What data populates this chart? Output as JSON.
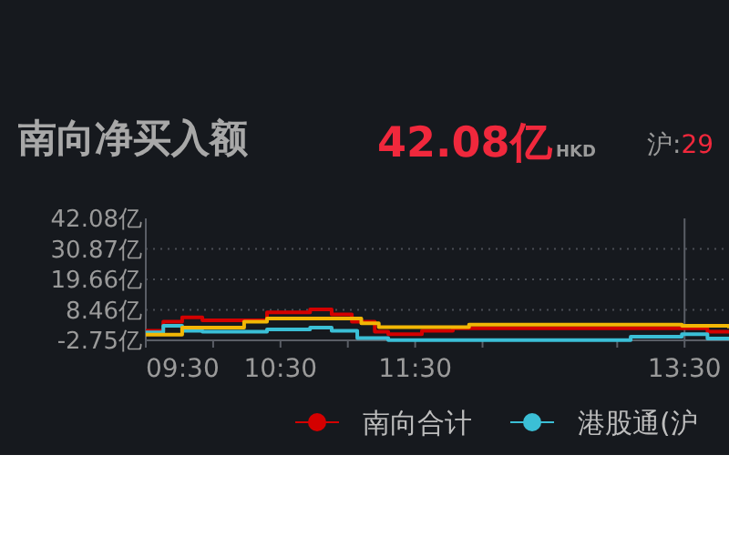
{
  "chart_data": {
    "type": "step",
    "title": "南向净买入额",
    "annotations": [
      "42.08亿",
      "HKD",
      "沪:",
      "29"
    ],
    "xlim": [
      9.5,
      13.83
    ],
    "xticks": [
      {
        "value": 9.5,
        "label": "09:30"
      },
      {
        "value": 10,
        "label": null
      },
      {
        "value": 10.5,
        "label": "10:30"
      },
      {
        "value": 11,
        "label": null
      },
      {
        "value": 11.5,
        "label": "11:30"
      },
      {
        "value": 12,
        "label": null
      },
      {
        "value": 13,
        "label": null
      },
      {
        "value": 13.5,
        "label": "13:30"
      }
    ],
    "ylim": [
      -2.75,
      42.08
    ],
    "yticks": [
      {
        "value": -2.75,
        "label": "-2.75亿"
      },
      {
        "value": 8.46,
        "label": "8.46亿"
      },
      {
        "value": 19.66,
        "label": "19.66亿"
      },
      {
        "value": 30.87,
        "label": "30.87亿"
      },
      {
        "value": 42.08,
        "label": "42.08亿"
      }
    ],
    "grid": "y",
    "legend": "bottom",
    "ref_lines": [
      {
        "axis": "x",
        "value": 13.5,
        "color": "#5a5e66"
      }
    ],
    "series": [
      {
        "name": "南向合计",
        "color": "#d40000",
        "x": [
          9.5,
          9.63,
          9.77,
          9.92,
          10.23,
          10.4,
          10.62,
          10.72,
          10.88,
          11.03,
          11.2,
          11.3,
          11.45,
          11.55,
          11.78,
          13.48,
          13.67,
          13.83
        ],
        "values": [
          0.8,
          4.1,
          5.7,
          4.6,
          4.6,
          7.5,
          7.5,
          8.6,
          6.8,
          4.1,
          0.4,
          -0.5,
          -0.5,
          0.8,
          1.7,
          1.7,
          0.4,
          0.4
        ]
      },
      {
        "name": "港股通(沪",
        "color": "#3bbfd6",
        "x": [
          9.5,
          9.63,
          9.77,
          9.92,
          10.4,
          10.72,
          10.88,
          11.07,
          11.3,
          13,
          13.1,
          13.45,
          13.48,
          13.67,
          13.83
        ],
        "values": [
          0.2,
          2.6,
          0.8,
          0.4,
          1.3,
          1.9,
          0.8,
          -1.9,
          -2.7,
          -2.7,
          -1.4,
          -1.4,
          -0.5,
          -2.1,
          -2.5
        ]
      },
      {
        "color": "#f2b705",
        "x": [
          9.5,
          9.77,
          10.23,
          10.4,
          10.88,
          11.1,
          11.23,
          11.78,
          11.9,
          13.13,
          13.48,
          13.83
        ],
        "values": [
          -0.7,
          1.9,
          4.1,
          5.3,
          5.3,
          3.5,
          2.1,
          2.1,
          3.0,
          3.0,
          2.6,
          1.7
        ]
      }
    ]
  }
}
